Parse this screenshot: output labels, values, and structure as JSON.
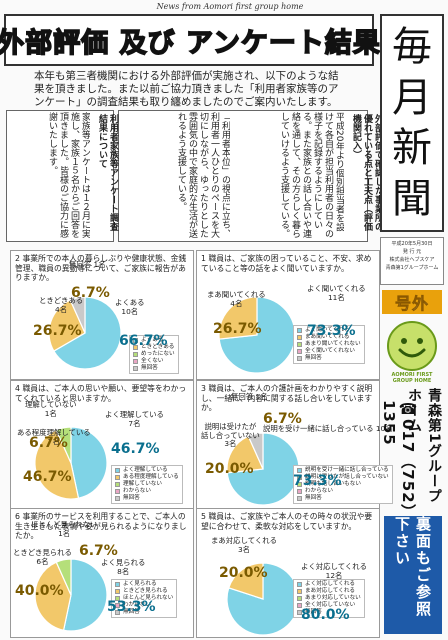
{
  "header": {
    "eyebrow": "News  from  Aomori  first  group  home",
    "headline": "外部評価 及び アンケート結果",
    "intro": "本年も第三者機関における外部評価が実施され、以下のような結果を頂きました。また以前ご協力頂きました「利用者家族等のアンケート」の調査結果も取り纏めましたのでご案内いたします。"
  },
  "masthead": {
    "chars": [
      "毎",
      "月",
      "新",
      "聞"
    ]
  },
  "pubinfo": {
    "date": "平成20年5月30日",
    "issue": "発 行 元",
    "company": "株式会社ヘブスケア",
    "dept": "青森第1グループホーム"
  },
  "extra_label": "号外",
  "logo_text": {
    "line1": "AOMORI FIRST",
    "line2": "GROUP HOME"
  },
  "org_name": "青森第1グループホーム",
  "phone": "☎017（752）1355",
  "back_note": "裏面もご参照下さい",
  "columns": {
    "col1_title": "外部評価で確認した事業所の優れている点と工夫点（評価機関記入）",
    "col1_text": "平成20年より個別担当者を設けて各自が担当利用者の日々の様子を記録するようにしている。また家族との話し合いや連絡を通して、その方らしく暮らしていけるよう支援している。",
    "col2_text": "「利用者本位」の視点に立ち、利用者一人ひとりのペースを大切にしながら、ゆったりとした雰囲気の中で家庭的な生活が送れるよう支援している。",
    "col3_title": "利用者家族等アンケート調査結果について",
    "col3_text": "家族等アンケートは１２月に実施し、家族１５名からご回答を頂きました。皆様のご協力に感謝いたします。"
  },
  "surveys": [
    {
      "id": "q2",
      "question": "2 事業所での本人の暮らしぶりや健康状態、金銭管理、職員の異動等について、ご家族に報告がありますか。",
      "legend": [
        "よくある",
        "ときどきある",
        "めったにない",
        "全くない",
        "無回答"
      ],
      "slices": [
        66.7,
        26.7,
        0,
        0,
        6.7
      ],
      "labels": [
        {
          "text": "よくある\n10名",
          "pct": "66.7%"
        },
        {
          "text": "ときどきある\n4名",
          "pct": "26.7%"
        },
        {
          "text": "無回答 1名",
          "pct": "6.7%"
        }
      ]
    },
    {
      "id": "q1",
      "question": "1 職員は、ご家族の困っていること、不安、求めていること等の話をよく聞いていますか。",
      "legend": [
        "よく聞いてくれる",
        "まあ聞いてくれる",
        "あまり聞いてくれない",
        "全く聞いてくれない",
        "無回答"
      ],
      "slices": [
        73.3,
        26.7,
        0,
        0,
        0
      ],
      "labels": [
        {
          "text": "よく聞いてくれる\n11名",
          "pct": "73.3%"
        },
        {
          "text": "まあ聞いてくれる\n4名",
          "pct": "26.7%"
        }
      ]
    },
    {
      "id": "q4",
      "question": "4 職員は、ご本人の思いや願い、要望等をわかってくれていると思いますか。",
      "legend": [
        "よく理解している",
        "ある程度理解している",
        "理解していない",
        "わからない",
        "無回答"
      ],
      "slices": [
        46.7,
        46.7,
        6.7,
        0,
        0
      ],
      "labels": [
        {
          "text": "よく理解している\n7名",
          "pct": "46.7%"
        },
        {
          "text": "ある程度理解している\n7名",
          "pct": "46.7%"
        },
        {
          "text": "理解していない\n1名",
          "pct": "6.7%"
        }
      ]
    },
    {
      "id": "q3",
      "question": "3 職員は、ご本人の介護計画をわかりやすく説明し、一緒に、内容に関する話し合いをしていますか。",
      "legend": [
        "説明を受け一緒に話し合っている",
        "説明は受けたが話し合っていない",
        "説明も話し合いもない",
        "わからない",
        "無回答"
      ],
      "slices": [
        73.3,
        20.0,
        0,
        0,
        6.7
      ],
      "labels": [
        {
          "text": "説明を受け一緒に話し合っている 10名",
          "pct": "73.3%"
        },
        {
          "text": "説明は受けたが\n話し合っていない\n3名",
          "pct": "20.0%"
        },
        {
          "text": "無回答 1名",
          "pct": "6.7%"
        }
      ]
    },
    {
      "id": "q6",
      "question": "6 事業所のサービスを利用することで、ご本人の生き生きした表情や姿が見られるようになりましたか。",
      "legend": [
        "よく見られる",
        "ときどき見られる",
        "ほとんど見られない",
        "わからない",
        "無回答"
      ],
      "slices": [
        53.3,
        40.0,
        6.7,
        0,
        0
      ],
      "labels": [
        {
          "text": "よく見られる\n8名",
          "pct": "53.3%"
        },
        {
          "text": "ときどき見られる\n6名",
          "pct": "40.0%"
        },
        {
          "text": "ほとんど見られない\n1名",
          "pct": "6.7%"
        }
      ]
    },
    {
      "id": "q5",
      "question": "5 職員は、ご家族やご本人のその時々の状況や要望に合わせて、柔軟な対応をしていますか。",
      "legend": [
        "よく対応してくれる",
        "まあ対応してくれる",
        "あまり対応していない",
        "全く対応していない",
        "無回答"
      ],
      "slices": [
        80.0,
        20.0,
        0,
        0,
        0
      ],
      "labels": [
        {
          "text": "よく対応してくれる\n12名",
          "pct": "80.0%"
        },
        {
          "text": "まあ対応してくれる\n3名",
          "pct": "20.0%"
        }
      ]
    }
  ],
  "colors": {
    "slice1": "#7fd3e6",
    "slice2": "#f2c86a",
    "slice3": "#b5df7a",
    "slice4": "#e9a6c4",
    "slice5": "#c9c9c9"
  }
}
